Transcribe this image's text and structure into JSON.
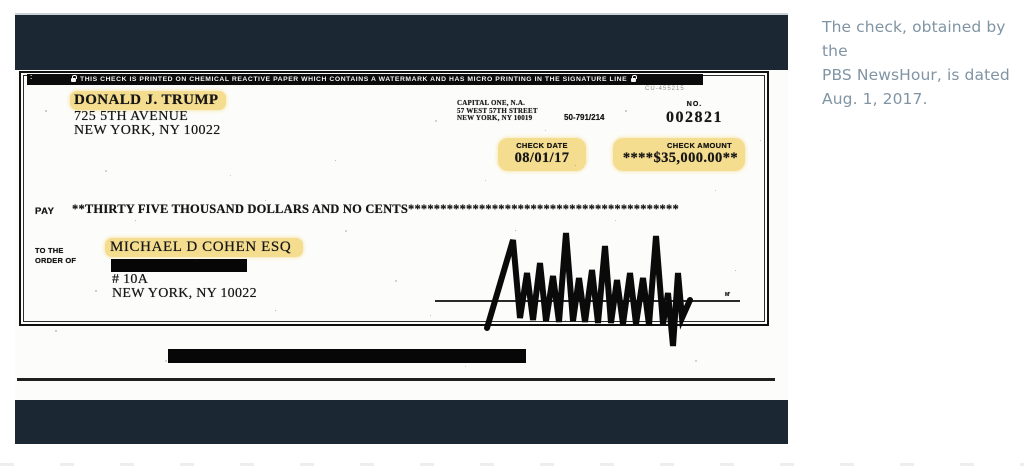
{
  "figure": {
    "background_color": "#1c2734",
    "highlight_color": "#f5dd8f",
    "check": {
      "security_banner": {
        "text": "THIS CHECK IS PRINTED ON CHEMICAL REACTIVE PAPER WHICH CONTAINS A WATERMARK AND HAS MICRO PRINTING IN THE SIGNATURE LINE",
        "left_mark": ":",
        "code": "CU-455215"
      },
      "payer": {
        "name": "DONALD J. TRUMP",
        "address1": "725 5TH AVENUE",
        "address2": "NEW YORK, NY 10022"
      },
      "bank": {
        "name": "CAPITAL ONE, N.A.",
        "address1": "57 WEST 57TH STREET",
        "address2": "NEW YORK, NY 10019"
      },
      "routing_fraction": "50-791/214",
      "check_number": {
        "label": "NO.",
        "value": "002821"
      },
      "check_date": {
        "label": "CHECK DATE",
        "value": "08/01/17"
      },
      "check_amount": {
        "label": "CHECK AMOUNT",
        "value": "****$35,000.00**"
      },
      "pay_line": {
        "label": "PAY",
        "text": "**THIRTY FIVE THOUSAND  DOLLARS AND NO CENTS******************************************"
      },
      "payee": {
        "label_line1": "TO THE",
        "label_line2": "ORDER OF",
        "name": "MICHAEL D COHEN ESQ",
        "address1": "# 10A",
        "address2": "NEW YORK, NY 10022"
      },
      "signature_annotation": "M'"
    }
  },
  "caption": {
    "color": "#8094a4",
    "text": "The check, obtained by the PBS NewsHour, is dated Aug. 1, 2017.",
    "lines": [
      "The check, obtained by the",
      "PBS NewsHour, is dated",
      "Aug. 1, 2017."
    ]
  }
}
